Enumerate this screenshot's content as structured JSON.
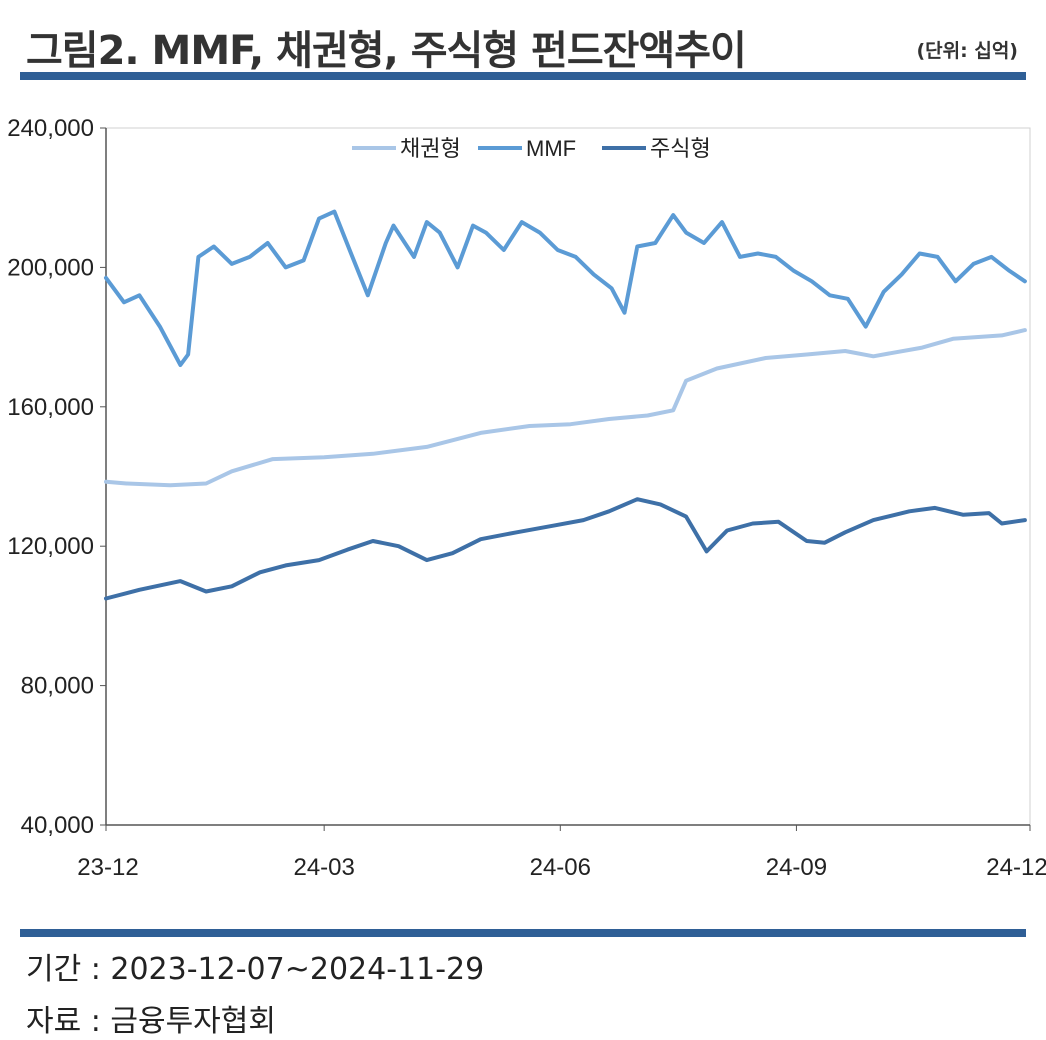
{
  "header": {
    "title": "그림2. MMF, 채권형, 주식형 펀드잔액추이",
    "unit": "(단위: 십억)"
  },
  "footer": {
    "period": "기간 : 2023-12-07~2024-11-29",
    "source": "자료 : 금융투자협회"
  },
  "chart_data": {
    "type": "line",
    "title": "",
    "xlabel": "",
    "ylabel": "",
    "ylim": [
      40000,
      240000
    ],
    "xlim": [
      "2023-12-07",
      "2024-11-29"
    ],
    "yticks": [
      "40,000",
      "80,000",
      "120,000",
      "160,000",
      "200,000",
      "240,000"
    ],
    "xticks": [
      {
        "label": "23-12",
        "date": "2023-12-07"
      },
      {
        "label": "24-03",
        "date": "2024-03-01"
      },
      {
        "label": "24-06",
        "date": "2024-06-01"
      },
      {
        "label": "24-09",
        "date": "2024-09-01"
      },
      {
        "label": "24-12",
        "date": "2024-12-01"
      }
    ],
    "legend_position": "top-center",
    "grid": false,
    "series": [
      {
        "name": "채권형",
        "color": "#a9c6e7",
        "x": [
          "2023-12-07",
          "2023-12-15",
          "2024-01-01",
          "2024-01-15",
          "2024-01-25",
          "2024-02-10",
          "2024-03-01",
          "2024-03-20",
          "2024-04-10",
          "2024-05-01",
          "2024-05-20",
          "2024-06-05",
          "2024-06-20",
          "2024-07-05",
          "2024-07-15",
          "2024-07-20",
          "2024-08-01",
          "2024-08-20",
          "2024-09-05",
          "2024-09-20",
          "2024-10-01",
          "2024-10-20",
          "2024-11-01",
          "2024-11-20",
          "2024-11-29"
        ],
        "values": [
          138500,
          138000,
          137500,
          138000,
          141500,
          145000,
          145500,
          146500,
          148500,
          152500,
          154500,
          155000,
          156500,
          157500,
          159000,
          167500,
          171000,
          174000,
          175000,
          176000,
          174500,
          177000,
          179500,
          180500,
          182000
        ]
      },
      {
        "name": "MMF",
        "color": "#5b9bd5",
        "x": [
          "2023-12-07",
          "2023-12-14",
          "2023-12-20",
          "2023-12-28",
          "2024-01-05",
          "2024-01-08",
          "2024-01-12",
          "2024-01-18",
          "2024-01-25",
          "2024-02-01",
          "2024-02-08",
          "2024-02-15",
          "2024-02-22",
          "2024-02-28",
          "2024-03-05",
          "2024-03-12",
          "2024-03-18",
          "2024-03-25",
          "2024-03-28",
          "2024-04-05",
          "2024-04-10",
          "2024-04-15",
          "2024-04-22",
          "2024-04-28",
          "2024-05-03",
          "2024-05-10",
          "2024-05-17",
          "2024-05-24",
          "2024-05-31",
          "2024-06-07",
          "2024-06-14",
          "2024-06-21",
          "2024-06-26",
          "2024-07-01",
          "2024-07-08",
          "2024-07-15",
          "2024-07-20",
          "2024-07-27",
          "2024-08-03",
          "2024-08-10",
          "2024-08-17",
          "2024-08-24",
          "2024-08-31",
          "2024-09-07",
          "2024-09-14",
          "2024-09-21",
          "2024-09-28",
          "2024-10-05",
          "2024-10-12",
          "2024-10-19",
          "2024-10-26",
          "2024-11-02",
          "2024-11-09",
          "2024-11-16",
          "2024-11-23",
          "2024-11-29"
        ],
        "values": [
          197000,
          190000,
          192000,
          183000,
          172000,
          175000,
          203000,
          206000,
          201000,
          203000,
          207000,
          200000,
          202000,
          214000,
          216000,
          203000,
          192000,
          207000,
          212000,
          203000,
          213000,
          210000,
          200000,
          212000,
          210000,
          205000,
          213000,
          210000,
          205000,
          203000,
          198000,
          194000,
          187000,
          206000,
          207000,
          215000,
          210000,
          207000,
          213000,
          203000,
          204000,
          203000,
          199000,
          196000,
          192000,
          191000,
          183000,
          193000,
          198000,
          204000,
          203000,
          196000,
          201000,
          203000,
          199000,
          196000
        ]
      },
      {
        "name": "주식형",
        "color": "#3e70a7",
        "x": [
          "2023-12-07",
          "2023-12-20",
          "2024-01-05",
          "2024-01-15",
          "2024-01-25",
          "2024-02-05",
          "2024-02-15",
          "2024-02-28",
          "2024-03-10",
          "2024-03-20",
          "2024-03-30",
          "2024-04-10",
          "2024-04-20",
          "2024-05-01",
          "2024-05-15",
          "2024-05-30",
          "2024-06-10",
          "2024-06-20",
          "2024-07-01",
          "2024-07-10",
          "2024-07-20",
          "2024-07-28",
          "2024-08-05",
          "2024-08-15",
          "2024-08-25",
          "2024-09-05",
          "2024-09-12",
          "2024-09-20",
          "2024-10-01",
          "2024-10-15",
          "2024-10-25",
          "2024-11-05",
          "2024-11-15",
          "2024-11-20",
          "2024-11-29"
        ],
        "values": [
          105000,
          107500,
          110000,
          107000,
          108500,
          112500,
          114500,
          116000,
          119000,
          121500,
          120000,
          116000,
          118000,
          122000,
          124000,
          126000,
          127500,
          130000,
          133500,
          132000,
          128500,
          118500,
          124500,
          126500,
          127000,
          121500,
          121000,
          124000,
          127500,
          130000,
          131000,
          129000,
          129500,
          126500,
          127500
        ]
      }
    ]
  }
}
